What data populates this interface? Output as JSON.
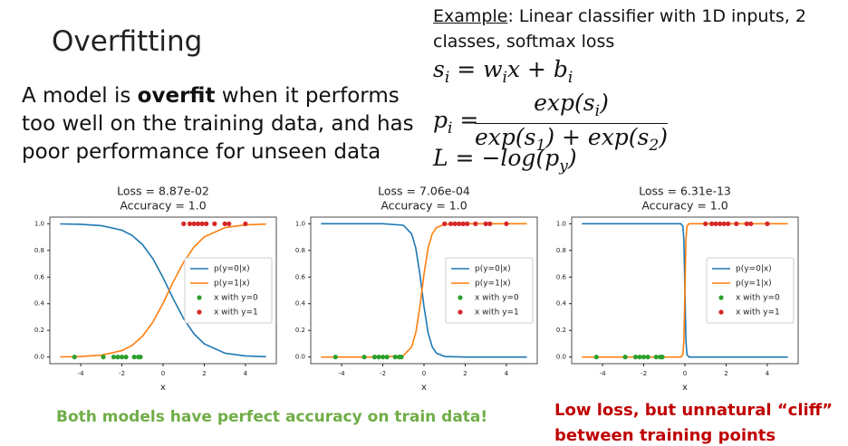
{
  "slide_title": "Overfitting",
  "body": [
    "A model is ",
    "overfit",
    " when it performs too well on the training data, and has poor performance for unseen data"
  ],
  "example": {
    "label": "Example",
    "text": ": Linear classifier with 1D inputs, 2 classes, softmax loss"
  },
  "equations": {
    "score": [
      "s",
      "i",
      " = w",
      "i",
      "x + b",
      "i"
    ],
    "prob_lhs": [
      "p",
      "i",
      " ="
    ],
    "numerator": [
      "exp(s",
      "i",
      ")"
    ],
    "denominator": [
      "exp(s",
      "1",
      ") + exp(s",
      "2",
      ")"
    ],
    "loss": [
      "L = −log(p",
      "y",
      ")"
    ]
  },
  "footer_left": "Both models have perfect accuracy on train data!",
  "footer_right": [
    "Low loss, but unnatural “cliff”",
    "between training points"
  ],
  "chart_data": [
    {
      "type": "line",
      "title": "Loss = 8.87e-02",
      "subtitle": "Accuracy = 1.0",
      "x_label": "x",
      "xlim": [
        -5.5,
        5.5
      ],
      "xticks": [
        -4,
        -2,
        0,
        2,
        4
      ],
      "ylim": [
        -0.05,
        1.05
      ],
      "yticks": [
        {
          "value": 0,
          "label": "0.0"
        },
        {
          "value": 0.2,
          "label": "0.2"
        },
        {
          "value": 0.4,
          "label": "0.4"
        },
        {
          "value": 0.6,
          "label": "0.6"
        },
        {
          "value": 0.8,
          "label": "0.8"
        },
        {
          "value": 1,
          "label": "1.0"
        }
      ],
      "legend": "center right",
      "x": [
        -5,
        -4,
        -3,
        -2,
        -1.5,
        -1,
        -0.5,
        0,
        0.5,
        1,
        1.5,
        2,
        3,
        4,
        5
      ],
      "series": [
        {
          "name": "p(y=0|x)",
          "type": "line",
          "color": "#1f77b4",
          "values": [
            0.999,
            0.996,
            0.986,
            0.952,
            0.912,
            0.844,
            0.739,
            0.596,
            0.435,
            0.287,
            0.174,
            0.099,
            0.029,
            0.008,
            0.002
          ]
        },
        {
          "name": "p(y=1|x)",
          "type": "line",
          "color": "#ff7f0e",
          "values": [
            0.001,
            0.004,
            0.014,
            0.048,
            0.088,
            0.156,
            0.261,
            0.404,
            0.565,
            0.713,
            0.826,
            0.901,
            0.971,
            0.992,
            0.998
          ]
        },
        {
          "name": "x with y=0",
          "type": "scatter",
          "color": "#2ca02c",
          "x": [
            -4.3,
            -2.9,
            -2.4,
            -2.2,
            -2.0,
            -1.8,
            -1.4,
            -1.2,
            -1.1
          ],
          "values": [
            0,
            0,
            0,
            0,
            0,
            0,
            0,
            0,
            0
          ]
        },
        {
          "name": "x with y=1",
          "type": "scatter",
          "color": "#d62728",
          "x": [
            1.0,
            1.3,
            1.5,
            1.7,
            1.9,
            2.1,
            2.5,
            3.0,
            3.2,
            4.0
          ],
          "values": [
            1,
            1,
            1,
            1,
            1,
            1,
            1,
            1,
            1,
            1
          ]
        }
      ]
    },
    {
      "type": "line",
      "title": "Loss = 7.06e-04",
      "subtitle": "Accuracy = 1.0",
      "x_label": "x",
      "xlim": [
        -5.5,
        5.5
      ],
      "xticks": [
        -4,
        -2,
        0,
        2,
        4
      ],
      "ylim": [
        -0.05,
        1.05
      ],
      "yticks": [
        {
          "value": 0,
          "label": "0.0"
        },
        {
          "value": 0.2,
          "label": "0.2"
        },
        {
          "value": 0.4,
          "label": "0.4"
        },
        {
          "value": 0.6,
          "label": "0.6"
        },
        {
          "value": 0.8,
          "label": "0.8"
        },
        {
          "value": 1,
          "label": "1.0"
        }
      ],
      "legend": "center right",
      "x": [
        -5,
        -2,
        -1,
        -0.6,
        -0.4,
        -0.2,
        0,
        0.2,
        0.4,
        0.6,
        1,
        2,
        5
      ],
      "series": [
        {
          "name": "p(y=0|x)",
          "type": "line",
          "color": "#1f77b4",
          "values": [
            1,
            1,
            0.989,
            0.924,
            0.818,
            0.622,
            0.378,
            0.182,
            0.076,
            0.029,
            0.004,
            0,
            0
          ]
        },
        {
          "name": "p(y=1|x)",
          "type": "line",
          "color": "#ff7f0e",
          "values": [
            0,
            0,
            0.011,
            0.076,
            0.182,
            0.378,
            0.622,
            0.818,
            0.924,
            0.971,
            0.996,
            1,
            1
          ]
        },
        {
          "name": "x with y=0",
          "type": "scatter",
          "color": "#2ca02c",
          "x": [
            -4.3,
            -2.9,
            -2.4,
            -2.2,
            -2.0,
            -1.8,
            -1.4,
            -1.2,
            -1.1
          ],
          "values": [
            0,
            0,
            0,
            0,
            0,
            0,
            0,
            0,
            0
          ]
        },
        {
          "name": "x with y=1",
          "type": "scatter",
          "color": "#d62728",
          "x": [
            1.0,
            1.3,
            1.5,
            1.7,
            1.9,
            2.1,
            2.5,
            3.0,
            3.2,
            4.0
          ],
          "values": [
            1,
            1,
            1,
            1,
            1,
            1,
            1,
            1,
            1,
            1
          ]
        }
      ]
    },
    {
      "type": "line",
      "title": "Loss = 6.31e-13",
      "subtitle": "Accuracy = 1.0",
      "x_label": "x",
      "xlim": [
        -5.5,
        5.5
      ],
      "xticks": [
        -4,
        -2,
        0,
        2,
        4
      ],
      "ylim": [
        -0.05,
        1.05
      ],
      "yticks": [
        {
          "value": 0,
          "label": "0.0"
        },
        {
          "value": 0.2,
          "label": "0.2"
        },
        {
          "value": 0.4,
          "label": "0.4"
        },
        {
          "value": 0.6,
          "label": "0.6"
        },
        {
          "value": 0.8,
          "label": "0.8"
        },
        {
          "value": 1,
          "label": "1.0"
        }
      ],
      "legend": "center right",
      "x": [
        -5,
        -0.2,
        -0.1,
        -0.05,
        0,
        0.05,
        0.1,
        0.2,
        5
      ],
      "series": [
        {
          "name": "p(y=0|x)",
          "type": "line",
          "color": "#1f77b4",
          "values": [
            1,
            1,
            0.982,
            0.881,
            0.5,
            0.119,
            0.018,
            0,
            0
          ]
        },
        {
          "name": "p(y=1|x)",
          "type": "line",
          "color": "#ff7f0e",
          "values": [
            0,
            0,
            0.018,
            0.119,
            0.5,
            0.881,
            0.982,
            1,
            1
          ]
        },
        {
          "name": "x with y=0",
          "type": "scatter",
          "color": "#2ca02c",
          "x": [
            -4.3,
            -2.9,
            -2.4,
            -2.2,
            -2.0,
            -1.8,
            -1.4,
            -1.2,
            -1.1
          ],
          "values": [
            0,
            0,
            0,
            0,
            0,
            0,
            0,
            0,
            0
          ]
        },
        {
          "name": "x with y=1",
          "type": "scatter",
          "color": "#d62728",
          "x": [
            1.0,
            1.3,
            1.5,
            1.7,
            1.9,
            2.1,
            2.5,
            3.0,
            3.2,
            4.0
          ],
          "values": [
            1,
            1,
            1,
            1,
            1,
            1,
            1,
            1,
            1,
            1
          ]
        }
      ]
    }
  ]
}
